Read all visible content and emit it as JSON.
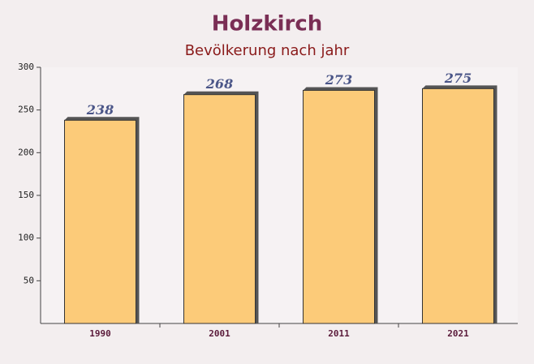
{
  "chart_data": {
    "type": "bar",
    "title": "Holzkirch",
    "subtitle": "Bevölkerung nach jahr",
    "categories": [
      "1990",
      "2001",
      "2011",
      "2021"
    ],
    "values": [
      238,
      268,
      273,
      275
    ],
    "color": "#fdc76b",
    "ylim": [
      0,
      300
    ],
    "yticks": [
      50,
      100,
      150,
      200,
      250,
      300
    ],
    "grid": false
  }
}
